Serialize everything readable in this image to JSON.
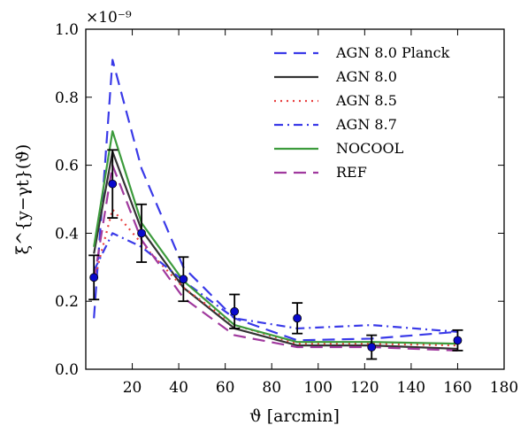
{
  "chart_data": {
    "type": "line",
    "xlabel": "ϑ [arcmin]",
    "ylabel": "ξ^{y−γt}(ϑ)",
    "y_scale_label": "×10⁻⁹",
    "xlim": [
      0,
      180
    ],
    "ylim": [
      0.0,
      1.0
    ],
    "x_ticks": [
      20,
      40,
      60,
      80,
      100,
      120,
      140,
      160,
      180
    ],
    "y_ticks": [
      0.0,
      0.2,
      0.4,
      0.6,
      0.8,
      1.0
    ],
    "x_tick_labels": [
      "20",
      "40",
      "60",
      "80",
      "100",
      "120",
      "140",
      "160",
      "180"
    ],
    "y_tick_labels": [
      "0.0",
      "0.2",
      "0.4",
      "0.6",
      "0.8",
      "1.0"
    ],
    "grid": false,
    "legend_position": "top-right",
    "series": [
      {
        "name": "AGN 8.0 Planck",
        "color": "#3a3ae8",
        "style": "dashed",
        "x": [
          3.5,
          11.5,
          24,
          42,
          64,
          91,
          123,
          160
        ],
        "y": [
          0.15,
          0.91,
          0.59,
          0.3,
          0.15,
          0.085,
          0.09,
          0.11
        ]
      },
      {
        "name": "AGN 8.0",
        "color": "#333333",
        "style": "solid",
        "x": [
          3.5,
          11.5,
          24,
          42,
          64,
          91,
          123,
          160
        ],
        "y": [
          0.34,
          0.64,
          0.41,
          0.24,
          0.12,
          0.07,
          0.07,
          0.06
        ]
      },
      {
        "name": "AGN 8.5",
        "color": "#e84040",
        "style": "dotted",
        "x": [
          3.5,
          11.5,
          24,
          42,
          64,
          91,
          123,
          160
        ],
        "y": [
          0.26,
          0.47,
          0.37,
          0.24,
          0.13,
          0.075,
          0.075,
          0.07
        ]
      },
      {
        "name": "AGN 8.7",
        "color": "#3a3ae8",
        "style": "dashdot",
        "x": [
          3.5,
          11.5,
          24,
          42,
          64,
          91,
          123,
          160
        ],
        "y": [
          0.29,
          0.4,
          0.36,
          0.26,
          0.15,
          0.12,
          0.13,
          0.11
        ]
      },
      {
        "name": "NOCOOL",
        "color": "#3c9b3c",
        "style": "solid",
        "x": [
          3.5,
          11.5,
          24,
          42,
          64,
          91,
          123,
          160
        ],
        "y": [
          0.36,
          0.7,
          0.43,
          0.26,
          0.13,
          0.08,
          0.08,
          0.075
        ]
      },
      {
        "name": "REF",
        "color": "#a0399e",
        "style": "dashed",
        "x": [
          3.5,
          11.5,
          24,
          42,
          64,
          91,
          123,
          160
        ],
        "y": [
          0.26,
          0.6,
          0.38,
          0.21,
          0.1,
          0.065,
          0.065,
          0.055
        ]
      }
    ],
    "data_points": {
      "color": "#0a0acd",
      "x": [
        3.5,
        11.5,
        24,
        42,
        64,
        91,
        123,
        160
      ],
      "y": [
        0.27,
        0.545,
        0.4,
        0.265,
        0.17,
        0.15,
        0.065,
        0.085
      ],
      "yerr": [
        0.065,
        0.1,
        0.085,
        0.065,
        0.05,
        0.045,
        0.035,
        0.03
      ]
    }
  }
}
